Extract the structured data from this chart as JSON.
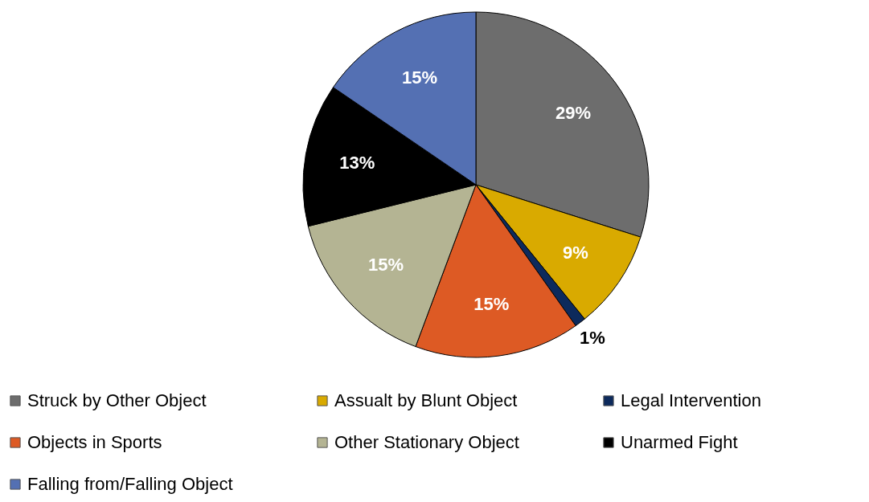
{
  "chart_data": {
    "type": "pie",
    "categories": [
      "Struck by Other Object",
      "Assualt by Blunt Object",
      "Legal Intervention",
      "Objects in Sports",
      "Other Stationary Object",
      "Unarmed Fight",
      "Falling from/Falling Object"
    ],
    "values": [
      29,
      9,
      1,
      15,
      15,
      13,
      15
    ],
    "value_labels": [
      "29%",
      "9%",
      "1%",
      "15%",
      "15%",
      "13%",
      "15%"
    ],
    "colors": [
      "#6d6d6d",
      "#d9aa00",
      "#0d2a5c",
      "#dd5a24",
      "#b4b493",
      "#000000",
      "#5470b3"
    ],
    "legend": "bottom"
  }
}
